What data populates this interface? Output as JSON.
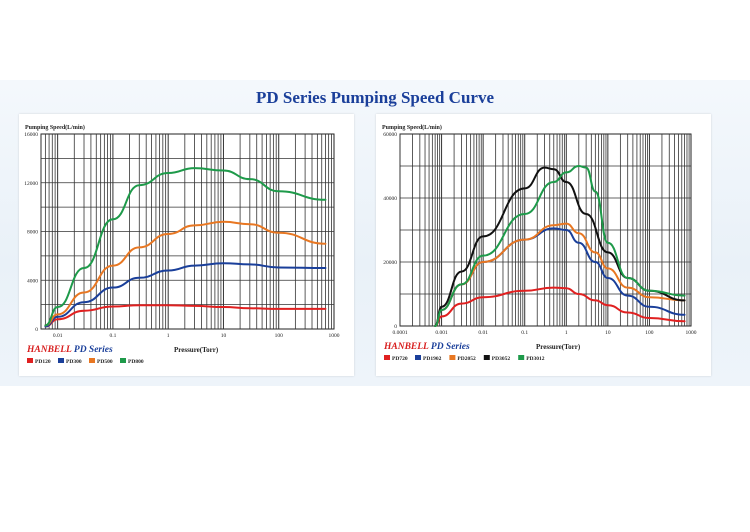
{
  "page_title": "PD Series Pumping Speed Curve",
  "chart_data": [
    {
      "type": "line",
      "ylabel": "Pumping Speed(L/min)",
      "xlabel": "Pressure(Torr)",
      "x_scale": "log",
      "xlim": [
        0.005,
        1000
      ],
      "ylim": [
        0,
        16000
      ],
      "x_ticks": [
        {
          "v": 0.01,
          "label": "0.01"
        },
        {
          "v": 0.1,
          "label": "0.1"
        },
        {
          "v": 1,
          "label": "1"
        },
        {
          "v": 10,
          "label": "10"
        },
        {
          "v": 100,
          "label": "100"
        },
        {
          "v": 1000,
          "label": "1000"
        }
      ],
      "y_ticks": [
        {
          "v": 0,
          "label": "0"
        },
        {
          "v": 4000,
          "label": "4000"
        },
        {
          "v": 8000,
          "label": "8000"
        },
        {
          "v": 12000,
          "label": "12000"
        },
        {
          "v": 16000,
          "label": "16000"
        }
      ],
      "brand": {
        "company": "HANBELL",
        "series": "PD Series"
      },
      "series": [
        {
          "name": "PD120",
          "color": "#e02020",
          "points": [
            [
              0.006,
              200
            ],
            [
              0.01,
              800
            ],
            [
              0.03,
              1500
            ],
            [
              0.1,
              1850
            ],
            [
              0.3,
              1950
            ],
            [
              1,
              1950
            ],
            [
              3,
              1900
            ],
            [
              10,
              1800
            ],
            [
              30,
              1700
            ],
            [
              100,
              1650
            ],
            [
              700,
              1650
            ]
          ]
        },
        {
          "name": "PD300",
          "color": "#1a3f9a",
          "points": [
            [
              0.006,
              200
            ],
            [
              0.01,
              1000
            ],
            [
              0.03,
              2200
            ],
            [
              0.1,
              3400
            ],
            [
              0.3,
              4200
            ],
            [
              1,
              4800
            ],
            [
              3,
              5200
            ],
            [
              10,
              5400
            ],
            [
              30,
              5300
            ],
            [
              100,
              5050
            ],
            [
              700,
              5000
            ]
          ]
        },
        {
          "name": "PD500",
          "color": "#e87722",
          "points": [
            [
              0.006,
              300
            ],
            [
              0.01,
              1200
            ],
            [
              0.03,
              3000
            ],
            [
              0.1,
              5200
            ],
            [
              0.3,
              6700
            ],
            [
              1,
              7800
            ],
            [
              3,
              8500
            ],
            [
              10,
              8800
            ],
            [
              30,
              8600
            ],
            [
              100,
              7900
            ],
            [
              700,
              7000
            ]
          ]
        },
        {
          "name": "PD800",
          "color": "#1e9a4a",
          "points": [
            [
              0.006,
              300
            ],
            [
              0.01,
              1800
            ],
            [
              0.03,
              5000
            ],
            [
              0.1,
              9000
            ],
            [
              0.3,
              11800
            ],
            [
              1,
              12800
            ],
            [
              3,
              13200
            ],
            [
              10,
              13000
            ],
            [
              30,
              12300
            ],
            [
              100,
              11300
            ],
            [
              700,
              10600
            ]
          ]
        }
      ]
    },
    {
      "type": "line",
      "ylabel": "Pumping Speed(L/min)",
      "xlabel": "Pressure(Torr)",
      "x_scale": "log",
      "xlim": [
        0.0001,
        1000
      ],
      "ylim": [
        0,
        60000
      ],
      "x_ticks": [
        {
          "v": 0.0001,
          "label": "0.0001"
        },
        {
          "v": 0.001,
          "label": "0.001"
        },
        {
          "v": 0.01,
          "label": "0.01"
        },
        {
          "v": 0.1,
          "label": "0.1"
        },
        {
          "v": 1,
          "label": "1"
        },
        {
          "v": 10,
          "label": "10"
        },
        {
          "v": 100,
          "label": "100"
        },
        {
          "v": 1000,
          "label": "1000"
        }
      ],
      "y_ticks": [
        {
          "v": 0,
          "label": "0"
        },
        {
          "v": 20000,
          "label": "20000"
        },
        {
          "v": 40000,
          "label": "40000"
        },
        {
          "v": 60000,
          "label": "60000"
        }
      ],
      "brand": {
        "company": "HANBELL",
        "series": "PD Series"
      },
      "series": [
        {
          "name": "PD720",
          "color": "#e02020",
          "points": [
            [
              0.0007,
              0
            ],
            [
              0.001,
              3000
            ],
            [
              0.003,
              7000
            ],
            [
              0.01,
              9000
            ],
            [
              0.1,
              11000
            ],
            [
              0.5,
              12000
            ],
            [
              1,
              11800
            ],
            [
              2,
              10000
            ],
            [
              5,
              8000
            ],
            [
              10,
              6500
            ],
            [
              30,
              4200
            ],
            [
              100,
              2500
            ],
            [
              700,
              1500
            ]
          ]
        },
        {
          "name": "PD1902",
          "color": "#1a3f9a",
          "points": [
            [
              0.0007,
              0
            ],
            [
              0.001,
              5000
            ],
            [
              0.003,
              13000
            ],
            [
              0.01,
              20000
            ],
            [
              0.1,
              27000
            ],
            [
              0.5,
              30500
            ],
            [
              1,
              30000
            ],
            [
              2,
              26000
            ],
            [
              5,
              20000
            ],
            [
              10,
              15000
            ],
            [
              30,
              9500
            ],
            [
              100,
              6000
            ],
            [
              700,
              3500
            ]
          ]
        },
        {
          "name": "PD2052",
          "color": "#e87722",
          "points": [
            [
              0.0007,
              0
            ],
            [
              0.001,
              5000
            ],
            [
              0.003,
              13000
            ],
            [
              0.01,
              20000
            ],
            [
              0.1,
              27000
            ],
            [
              0.5,
              31500
            ],
            [
              1,
              32000
            ],
            [
              2,
              29000
            ],
            [
              5,
              23000
            ],
            [
              10,
              18000
            ],
            [
              30,
              12000
            ],
            [
              100,
              9000
            ],
            [
              700,
              8000
            ]
          ]
        },
        {
          "name": "PD3052",
          "color": "#111111",
          "points": [
            [
              0.0007,
              0
            ],
            [
              0.001,
              6000
            ],
            [
              0.003,
              17000
            ],
            [
              0.01,
              28000
            ],
            [
              0.1,
              43000
            ],
            [
              0.3,
              49500
            ],
            [
              0.5,
              49000
            ],
            [
              1,
              45000
            ],
            [
              3,
              35000
            ],
            [
              10,
              23000
            ],
            [
              30,
              15000
            ],
            [
              100,
              11000
            ],
            [
              700,
              8000
            ]
          ]
        },
        {
          "name": "PD3012",
          "color": "#1e9a4a",
          "points": [
            [
              0.0007,
              0
            ],
            [
              0.001,
              5000
            ],
            [
              0.003,
              13000
            ],
            [
              0.01,
              22000
            ],
            [
              0.1,
              35000
            ],
            [
              0.5,
              45000
            ],
            [
              1,
              48000
            ],
            [
              2,
              50000
            ],
            [
              3,
              49500
            ],
            [
              5,
              42000
            ],
            [
              10,
              26000
            ],
            [
              30,
              15000
            ],
            [
              100,
              11000
            ],
            [
              700,
              9500
            ]
          ]
        }
      ]
    }
  ]
}
